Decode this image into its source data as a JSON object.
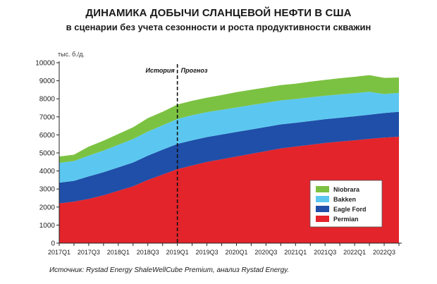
{
  "title": "ДИНАМИКА ДОБЫЧИ СЛАНЦЕВОЙ НЕФТИ В США",
  "subtitle": "в сценарии без учета сезонности и роста продуктивности скважин",
  "source": "Источник: Rystad Energy ShaleWellCube Premium, анализ Rystad Energy.",
  "chart_data": {
    "type": "area",
    "stacked": true,
    "title": "ДИНАМИКА ДОБЫЧИ СЛАНЦЕВОЙ НЕФТИ В США",
    "subtitle": "в сценарии без учета сезонности и роста продуктивности скважин",
    "ylabel": "тыс. б./д.",
    "ylim": [
      0,
      10000
    ],
    "yticks": [
      0,
      1000,
      2000,
      3000,
      4000,
      5000,
      6000,
      7000,
      8000,
      9000,
      10000
    ],
    "xtick_labels": [
      "2017Q1",
      "2017Q3",
      "2018Q1",
      "2018Q3",
      "2019Q1",
      "2019Q3",
      "2020Q1",
      "2020Q3",
      "2021Q1",
      "2021Q3",
      "2022Q1",
      "2022Q3"
    ],
    "x": [
      "2017Q1",
      "2017Q2",
      "2017Q3",
      "2017Q4",
      "2018Q1",
      "2018Q2",
      "2018Q3",
      "2018Q4",
      "2019Q1",
      "2019Q2",
      "2019Q3",
      "2019Q4",
      "2020Q1",
      "2020Q2",
      "2020Q3",
      "2020Q4",
      "2021Q1",
      "2021Q2",
      "2021Q3",
      "2021Q4",
      "2022Q1",
      "2022Q2",
      "2022Q3",
      "2022Q4"
    ],
    "divider": {
      "at": "2019Q1",
      "left_label": "История",
      "right_label": "Прогноз"
    },
    "series": [
      {
        "name": "Permian",
        "color": "#e3242b",
        "values": [
          2200,
          2300,
          2450,
          2650,
          2900,
          3150,
          3500,
          3800,
          4100,
          4300,
          4500,
          4650,
          4800,
          4950,
          5100,
          5250,
          5350,
          5450,
          5550,
          5630,
          5700,
          5780,
          5850,
          5900
        ]
      },
      {
        "name": "Eagle Ford",
        "color": "#1f4fa8",
        "values": [
          1150,
          1150,
          1250,
          1280,
          1300,
          1320,
          1350,
          1380,
          1400,
          1400,
          1380,
          1370,
          1360,
          1350,
          1340,
          1330,
          1320,
          1320,
          1320,
          1320,
          1330,
          1340,
          1360,
          1380
        ]
      },
      {
        "name": "Bakken",
        "color": "#5bc7f0",
        "values": [
          1100,
          1100,
          1150,
          1200,
          1250,
          1300,
          1330,
          1350,
          1380,
          1390,
          1380,
          1370,
          1360,
          1350,
          1340,
          1330,
          1320,
          1310,
          1300,
          1290,
          1280,
          1270,
          1050,
          1050
        ]
      },
      {
        "name": "Niobrara",
        "color": "#7cc242",
        "values": [
          350,
          350,
          500,
          550,
          600,
          650,
          750,
          750,
          800,
          800,
          800,
          820,
          850,
          850,
          850,
          850,
          850,
          870,
          880,
          900,
          910,
          920,
          900,
          850
        ]
      }
    ],
    "legend": {
      "position": "inside-right",
      "entries": [
        "Niobrara",
        "Bakken",
        "Eagle Ford",
        "Permian"
      ]
    },
    "grid": false
  }
}
